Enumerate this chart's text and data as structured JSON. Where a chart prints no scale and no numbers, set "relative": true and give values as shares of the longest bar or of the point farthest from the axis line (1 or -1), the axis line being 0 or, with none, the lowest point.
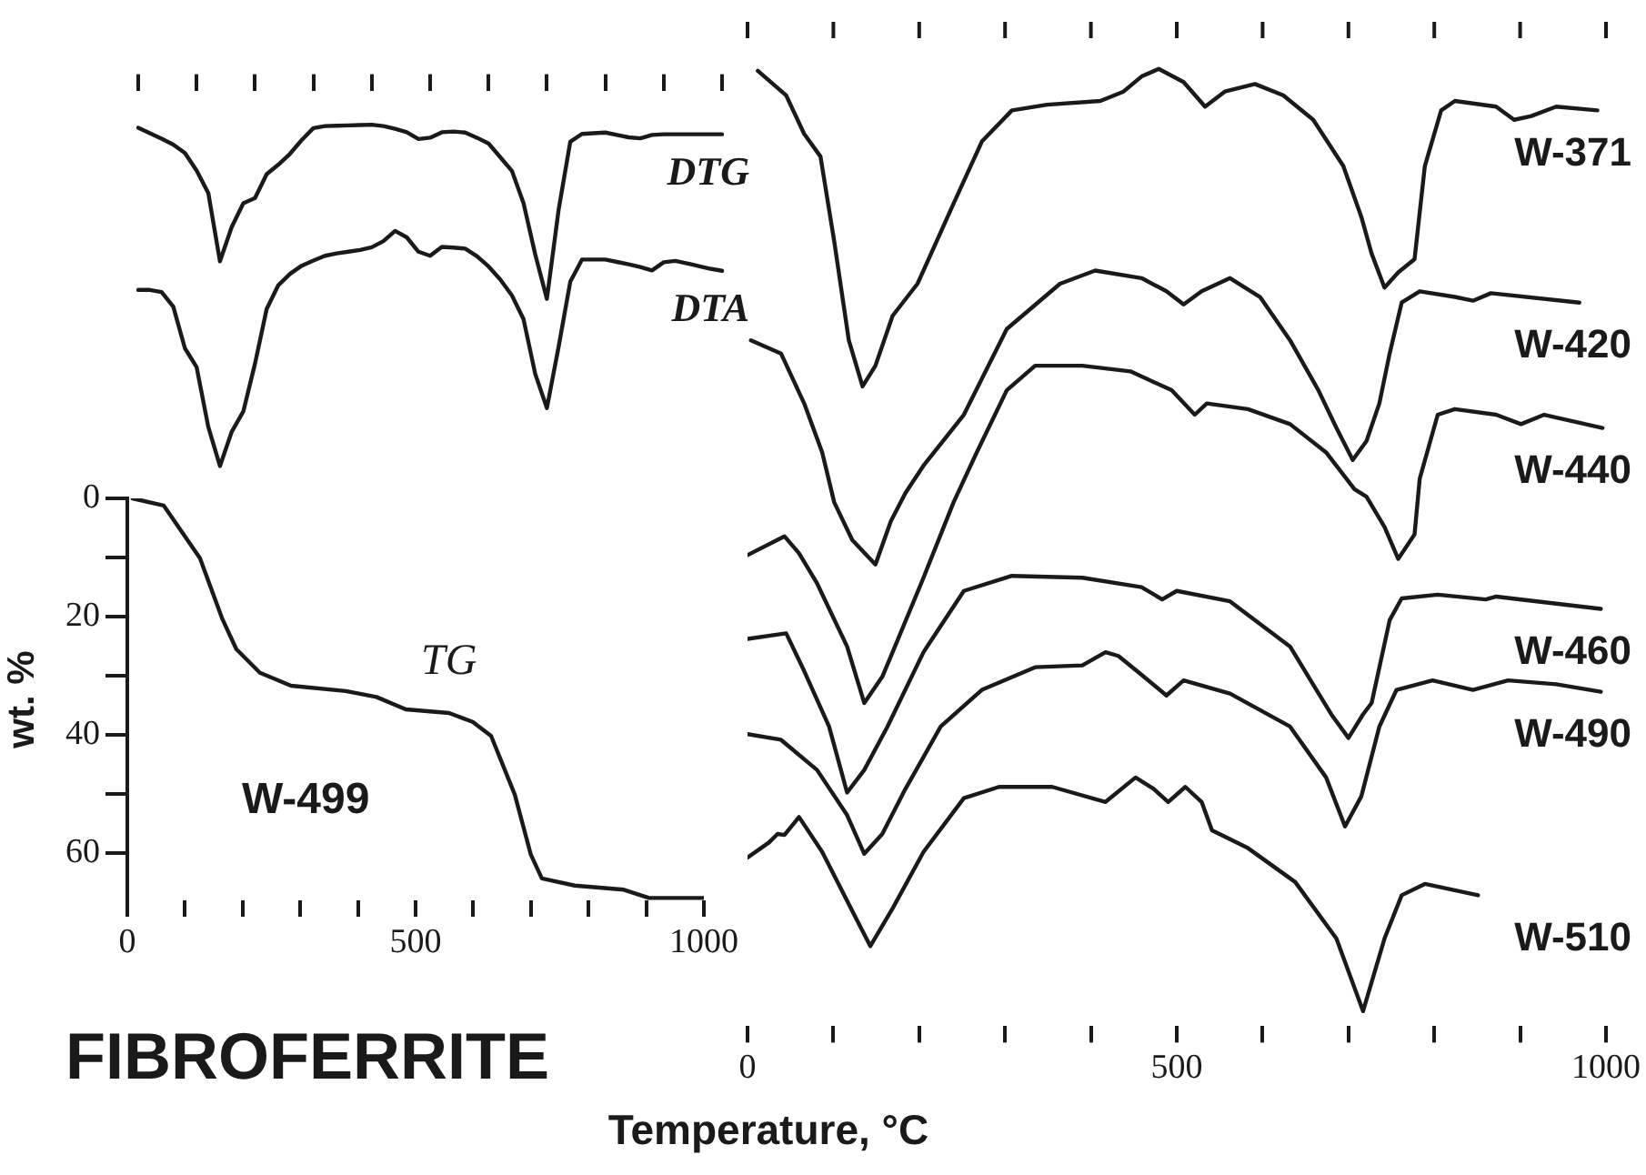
{
  "chart_data": [
    {
      "type": "line",
      "relative": true,
      "categories": [
        null,
        null,
        null,
        null,
        null,
        null,
        null,
        null,
        null,
        null,
        null,
        null,
        null,
        null,
        null,
        null,
        null,
        null,
        null,
        null,
        null,
        null,
        null,
        null,
        null,
        null,
        null,
        null,
        null,
        null,
        null,
        null,
        null,
        null,
        null,
        null,
        null,
        null,
        null,
        null,
        null,
        null,
        null,
        null,
        null,
        null,
        null,
        null,
        null,
        null,
        null
      ],
      "series": [
        {
          "name": "DTG",
          "color": "#1a1a1a",
          "values": [
            0.991,
            0.975,
            0.959,
            0.942,
            0.917,
            0.866,
            0.8,
            0.6,
            0.7,
            0.77,
            0.785,
            0.855,
            0.883,
            0.915,
            0.955,
            0.99,
            0.996,
            0.997,
            0.998,
            0.999,
            1,
            0.996,
            0.988,
            0.978,
            0.958,
            0.962,
            0.978,
            0.98,
            0.977,
            0.962,
            0.945,
            0.905,
            0.865,
            0.77,
            0.62,
            0.49,
            0.75,
            0.95,
            0.973,
            0.975,
            0.977,
            0.97,
            0.963,
            0.96,
            0.97,
            0.972,
            0.972,
            0.972,
            0.972,
            0.972,
            0.972
          ]
        },
        {
          "name": "DTA",
          "color": "#1a1a1a",
          "values": [
            0.516,
            0.516,
            0.51,
            0.467,
            0.345,
            0.29,
            0.115,
            0,
            0.1,
            0.16,
            0.3,
            0.46,
            0.53,
            0.563,
            0.587,
            0.602,
            0.616,
            0.623,
            0.628,
            0.633,
            0.641,
            0.659,
            0.689,
            0.67,
            0.628,
            0.616,
            0.642,
            0.64,
            0.637,
            0.615,
            0.585,
            0.547,
            0.5,
            0.43,
            0.27,
            0.17,
            0.349,
            0.54,
            0.605,
            0.605,
            0.605,
            0.598,
            0.591,
            0.583,
            0.573,
            0.597,
            0.601,
            0.594,
            0.586,
            0.578,
            0.572
          ]
        }
      ]
    },
    {
      "type": "line",
      "ylabel": "wt. %",
      "xlim": [
        0,
        1000
      ],
      "xticks": [
        0,
        {
          "value": 100,
          "label": null
        },
        {
          "value": 200,
          "label": null
        },
        {
          "value": 300,
          "label": null
        },
        {
          "value": 400,
          "label": null
        },
        500,
        {
          "value": 600,
          "label": null
        },
        {
          "value": 700,
          "label": null
        },
        {
          "value": 800,
          "label": null
        },
        {
          "value": 900,
          "label": null
        },
        1000
      ],
      "ylim": [
        68,
        0
      ],
      "yticks": [
        0,
        {
          "value": 10,
          "label": null
        },
        20,
        {
          "value": 30,
          "label": null
        },
        40,
        {
          "value": 50,
          "label": null
        },
        60
      ],
      "annotations": [
        "W-499"
      ],
      "series": [
        {
          "name": "TG",
          "color": "#1a1a1a",
          "x": [
            9,
            63,
            126,
            164,
            189,
            230,
            284,
            379,
            432,
            483,
            558,
            599,
            631,
            672,
            700,
            719,
            776,
            861,
            905,
            1000
          ],
          "values": [
            0,
            1.2,
            10.1,
            20.2,
            25.5,
            29.5,
            31.7,
            32.6,
            33.6,
            35.7,
            36.3,
            37.8,
            40.2,
            50.1,
            60.3,
            64.3,
            65.5,
            66.2,
            67.6,
            67.6
          ]
        }
      ]
    },
    {
      "type": "line",
      "relative": true,
      "xlabel": "Temperature, °C",
      "annotations": [
        "FIBROFERRITE"
      ],
      "xlim": [
        0,
        1000
      ],
      "xticks": [
        0,
        {
          "value": 100,
          "label": null
        },
        {
          "value": 200,
          "label": null
        },
        {
          "value": 300,
          "label": null
        },
        {
          "value": 400,
          "label": null
        },
        500,
        {
          "value": 600,
          "label": null
        },
        {
          "value": 700,
          "label": null
        },
        {
          "value": 800,
          "label": null
        },
        {
          "value": 900,
          "label": null
        },
        1000
      ],
      "series": [
        {
          "name": "W-371",
          "color": "#1a1a1a",
          "x": [
            12,
            45,
            66,
            85,
            101,
            118,
            134,
            149,
            169,
            198,
            240,
            273,
            308,
            349,
            411,
            438,
            459,
            479,
            508,
            533,
            556,
            591,
            624,
            659,
            694,
            715,
            727,
            742,
            758,
            777,
            789,
            808,
            824,
            872,
            893,
            913,
            942,
            990
          ],
          "values": [
            0.998,
            0.972,
            0.931,
            0.907,
            0.817,
            0.712,
            0.663,
            0.685,
            0.738,
            0.772,
            0.857,
            0.923,
            0.956,
            0.962,
            0.966,
            0.976,
            0.992,
            1,
            0.986,
            0.96,
            0.976,
            0.984,
            0.972,
            0.946,
            0.897,
            0.843,
            0.804,
            0.768,
            0.784,
            0.798,
            0.897,
            0.956,
            0.966,
            0.96,
            0.946,
            0.95,
            0.96,
            0.956
          ]
        },
        {
          "name": "W-420",
          "color": "#1a1a1a",
          "x": [
            4,
            39,
            66,
            87,
            101,
            122,
            149,
            167,
            184,
            205,
            252,
            302,
            364,
            405,
            459,
            488,
            508,
            529,
            562,
            597,
            632,
            665,
            686,
            705,
            721,
            736,
            748,
            762,
            783,
            824,
            845,
            866,
            969
          ],
          "values": [
            0.712,
            0.698,
            0.645,
            0.593,
            0.54,
            0.5,
            0.474,
            0.52,
            0.55,
            0.579,
            0.633,
            0.724,
            0.772,
            0.786,
            0.778,
            0.764,
            0.75,
            0.764,
            0.778,
            0.758,
            0.712,
            0.659,
            0.619,
            0.585,
            0.605,
            0.645,
            0.698,
            0.752,
            0.764,
            0.758,
            0.754,
            0.762,
            0.752
          ]
        },
        {
          "name": "W-440",
          "color": "#1a1a1a",
          "x": [
            0,
            43,
            60,
            81,
            116,
            136,
            157,
            169,
            205,
            240,
            267,
            302,
            335,
            390,
            446,
            494,
            521,
            535,
            583,
            632,
            674,
            707,
            721,
            742,
            758,
            777,
            783,
            804,
            824,
            872,
            901,
            928,
            996
          ],
          "values": [
            0.484,
            0.504,
            0.486,
            0.454,
            0.387,
            0.327,
            0.355,
            0.381,
            0.46,
            0.54,
            0.593,
            0.659,
            0.685,
            0.685,
            0.679,
            0.659,
            0.633,
            0.645,
            0.639,
            0.623,
            0.593,
            0.554,
            0.546,
            0.514,
            0.48,
            0.506,
            0.565,
            0.633,
            0.639,
            0.633,
            0.623,
            0.633,
            0.619
          ]
        },
        {
          "name": "W-460",
          "color": "#1a1a1a",
          "x": [
            0,
            45,
            66,
            95,
            116,
            136,
            163,
            205,
            252,
            308,
            390,
            459,
            483,
            500,
            562,
            632,
            680,
            700,
            717,
            727,
            748,
            762,
            804,
            860,
            872,
            994
          ],
          "values": [
            0.395,
            0.401,
            0.361,
            0.302,
            0.232,
            0.256,
            0.302,
            0.381,
            0.446,
            0.462,
            0.46,
            0.45,
            0.437,
            0.446,
            0.435,
            0.387,
            0.315,
            0.29,
            0.315,
            0.327,
            0.415,
            0.438,
            0.442,
            0.437,
            0.44,
            0.427
          ]
        },
        {
          "name": "W-490",
          "color": "#1a1a1a",
          "x": [
            0,
            39,
            81,
            116,
            136,
            157,
            184,
            225,
            273,
            335,
            390,
            417,
            432,
            459,
            488,
            508,
            562,
            632,
            674,
            696,
            715,
            736,
            756,
            798,
            845,
            886,
            942,
            994
          ],
          "values": [
            0.294,
            0.288,
            0.256,
            0.208,
            0.167,
            0.188,
            0.236,
            0.302,
            0.341,
            0.365,
            0.367,
            0.381,
            0.377,
            0.357,
            0.335,
            0.351,
            0.337,
            0.302,
            0.248,
            0.196,
            0.228,
            0.302,
            0.341,
            0.351,
            0.341,
            0.351,
            0.347,
            0.339
          ]
        },
        {
          "name": "W-510",
          "color": "#1a1a1a",
          "x": [
            0,
            25,
            35,
            43,
            60,
            87,
            116,
            143,
            169,
            205,
            252,
            293,
            355,
            417,
            452,
            473,
            490,
            510,
            529,
            541,
            583,
            638,
            686,
            717,
            742,
            762,
            789,
            851
          ],
          "values": [
            0.163,
            0.179,
            0.188,
            0.187,
            0.206,
            0.169,
            0.117,
            0.069,
            0.109,
            0.169,
            0.226,
            0.238,
            0.238,
            0.222,
            0.248,
            0.236,
            0.222,
            0.238,
            0.222,
            0.192,
            0.173,
            0.137,
            0.077,
            0,
            0.077,
            0.123,
            0.135,
            0.123
          ]
        }
      ]
    }
  ]
}
